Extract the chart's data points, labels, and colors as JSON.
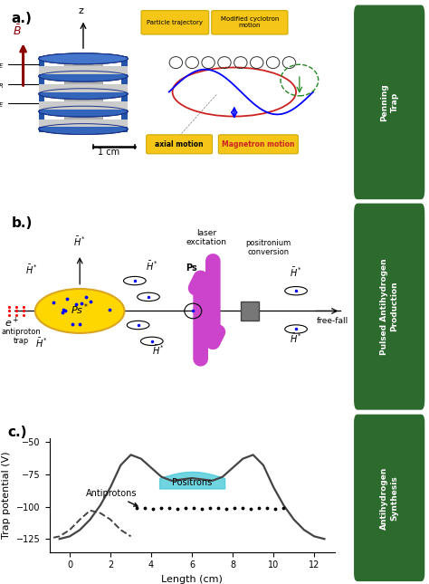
{
  "panel_a_bg": "#f5f0dc",
  "panel_b_bg": "#ffffff",
  "panel_c_bg": "#ffffff",
  "side_bg_color": "#2d6a2d",
  "graph_c": {
    "xlabel": "Length (cm)",
    "ylabel": "Trap potential (V)",
    "xticks": [
      0,
      2,
      4,
      6,
      8,
      10,
      12
    ],
    "yticks": [
      -125,
      -100,
      -75,
      -50
    ],
    "solid_x": [
      -0.5,
      0.0,
      0.5,
      1.0,
      1.5,
      2.0,
      2.5,
      3.0,
      3.5,
      4.0,
      4.5,
      5.0,
      5.5,
      6.0,
      6.5,
      7.0,
      7.5,
      8.0,
      8.5,
      9.0,
      9.5,
      10.0,
      10.5,
      11.0,
      11.5,
      12.0,
      12.5
    ],
    "solid_y": [
      -125,
      -123,
      -118,
      -110,
      -99,
      -85,
      -68,
      -60,
      -63,
      -70,
      -77,
      -80,
      -79,
      -78,
      -79,
      -80,
      -77,
      -70,
      -63,
      -60,
      -68,
      -85,
      -99,
      -110,
      -118,
      -123,
      -125
    ],
    "dashed_x": [
      -0.8,
      -0.5,
      0.0,
      0.5,
      1.0,
      1.5,
      2.0,
      2.5,
      3.0
    ],
    "dashed_y": [
      -124,
      -123,
      -118,
      -110,
      -103,
      -105,
      -110,
      -118,
      -123
    ],
    "dots_x": [
      3.3,
      3.7,
      4.1,
      4.5,
      4.9,
      5.3,
      5.7,
      6.1,
      6.5,
      6.9,
      7.3,
      7.7,
      8.1,
      8.5,
      8.9,
      9.3,
      9.7,
      10.1,
      10.5
    ],
    "dots_y": [
      -101,
      -101,
      -102,
      -101,
      -101,
      -102,
      -101,
      -101,
      -102,
      -101,
      -101,
      -102,
      -101,
      -101,
      -102,
      -101,
      -101,
      -102,
      -101
    ],
    "positron_fill_x_start": 4.4,
    "positron_fill_x_end": 7.6,
    "positron_top_y": -78,
    "positron_bottom_y": -86,
    "positron_color": "#40c8d8"
  }
}
